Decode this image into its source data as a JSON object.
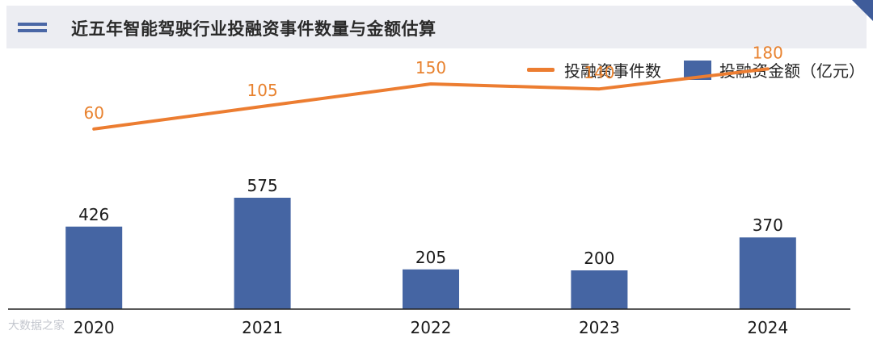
{
  "title": "近五年智能驾驶行业投融资事件数量与金额估算",
  "watermark": "大数据之家",
  "colors": {
    "title_bg": "#ecedf2",
    "accent": "#4a67a6",
    "bar": "#4565a3",
    "line": "#ec7d31",
    "line_label": "#e8822f"
  },
  "chart_data": {
    "type": "bar",
    "categories": [
      "2020",
      "2021",
      "2022",
      "2023",
      "2024"
    ],
    "series": [
      {
        "name": "投融资金额（亿元）",
        "type": "bar",
        "values": [
          426,
          575,
          205,
          200,
          370
        ]
      },
      {
        "name": "投融资事件数",
        "type": "line",
        "values": [
          60,
          105,
          150,
          140,
          180
        ]
      }
    ],
    "legend": [
      "投融资事件数",
      "投融资金额（亿元）"
    ],
    "legend_position": "top-right",
    "bar_ylim": [
      0,
      1000
    ],
    "line_ylim": [
      -300,
      250
    ],
    "grid": false,
    "xlabel": "",
    "ylabel": ""
  }
}
